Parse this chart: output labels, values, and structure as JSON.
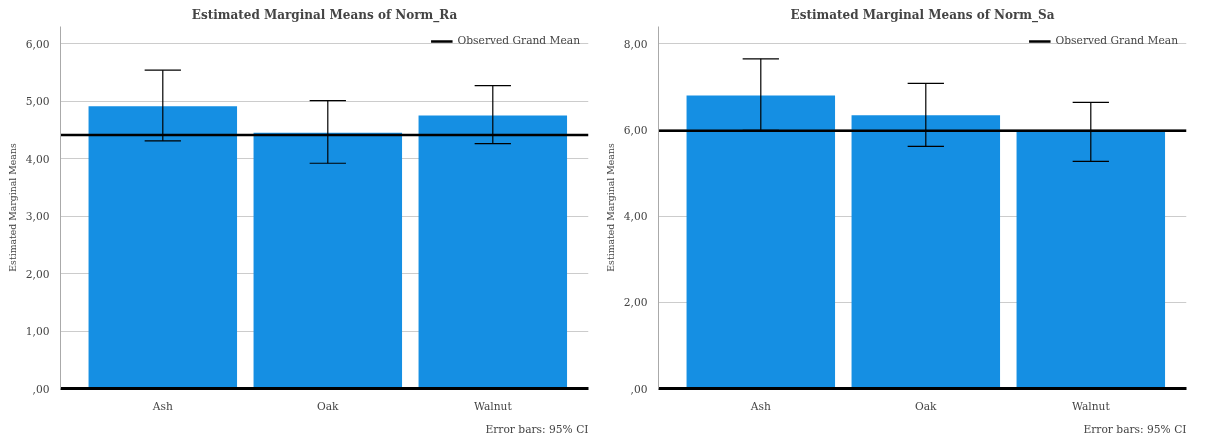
{
  "chart_data": [
    {
      "type": "bar",
      "title": "Estimated Marginal Means of Norm_Ra",
      "ylabel": "Estimated Marginal Means",
      "categories": [
        "Ash",
        "Oak",
        "Walnut"
      ],
      "series": [
        {
          "color": "#158fe3",
          "values": [
            4.91,
            4.45,
            4.75
          ],
          "errors": [
            [
              4.31,
              5.54
            ],
            [
              3.92,
              5.01
            ],
            [
              4.26,
              5.27
            ]
          ]
        }
      ],
      "ylim": [
        0,
        6.3
      ],
      "yticks": [
        {
          "value": 0,
          "label": ",00"
        },
        {
          "value": 1,
          "label": "1,00"
        },
        {
          "value": 2,
          "label": "2,00"
        },
        {
          "value": 3,
          "label": "3,00"
        },
        {
          "value": 4,
          "label": "4,00"
        },
        {
          "value": 5,
          "label": "5,00"
        },
        {
          "value": 6,
          "label": "6,00"
        }
      ],
      "ref_lines": [
        {
          "axis": "y",
          "value": 4.41,
          "label": "Observed Grand Mean",
          "color": "#000000"
        }
      ],
      "grid": "y",
      "legend": "top right",
      "annotations": [
        "Error bars: 95% CI"
      ]
    },
    {
      "type": "bar",
      "title": "Estimated Marginal Means of Norm_Sa",
      "ylabel": "Estimated Marginal Means",
      "categories": [
        "Ash",
        "Oak",
        "Walnut"
      ],
      "series": [
        {
          "color": "#158fe3",
          "values": [
            6.8,
            6.34,
            5.96
          ],
          "errors": [
            [
              5.99,
              7.65
            ],
            [
              5.62,
              7.08
            ],
            [
              5.27,
              6.64
            ]
          ]
        }
      ],
      "ylim": [
        0,
        8.4
      ],
      "yticks": [
        {
          "value": 0,
          "label": ",00"
        },
        {
          "value": 2,
          "label": "2,00"
        },
        {
          "value": 4,
          "label": "4,00"
        },
        {
          "value": 6,
          "label": "6,00"
        },
        {
          "value": 8,
          "label": "8,00"
        }
      ],
      "ref_lines": [
        {
          "axis": "y",
          "value": 5.98,
          "label": "Observed Grand Mean",
          "color": "#000000"
        }
      ],
      "grid": "y",
      "legend": "top right",
      "annotations": [
        "Error bars: 95% CI"
      ]
    }
  ]
}
